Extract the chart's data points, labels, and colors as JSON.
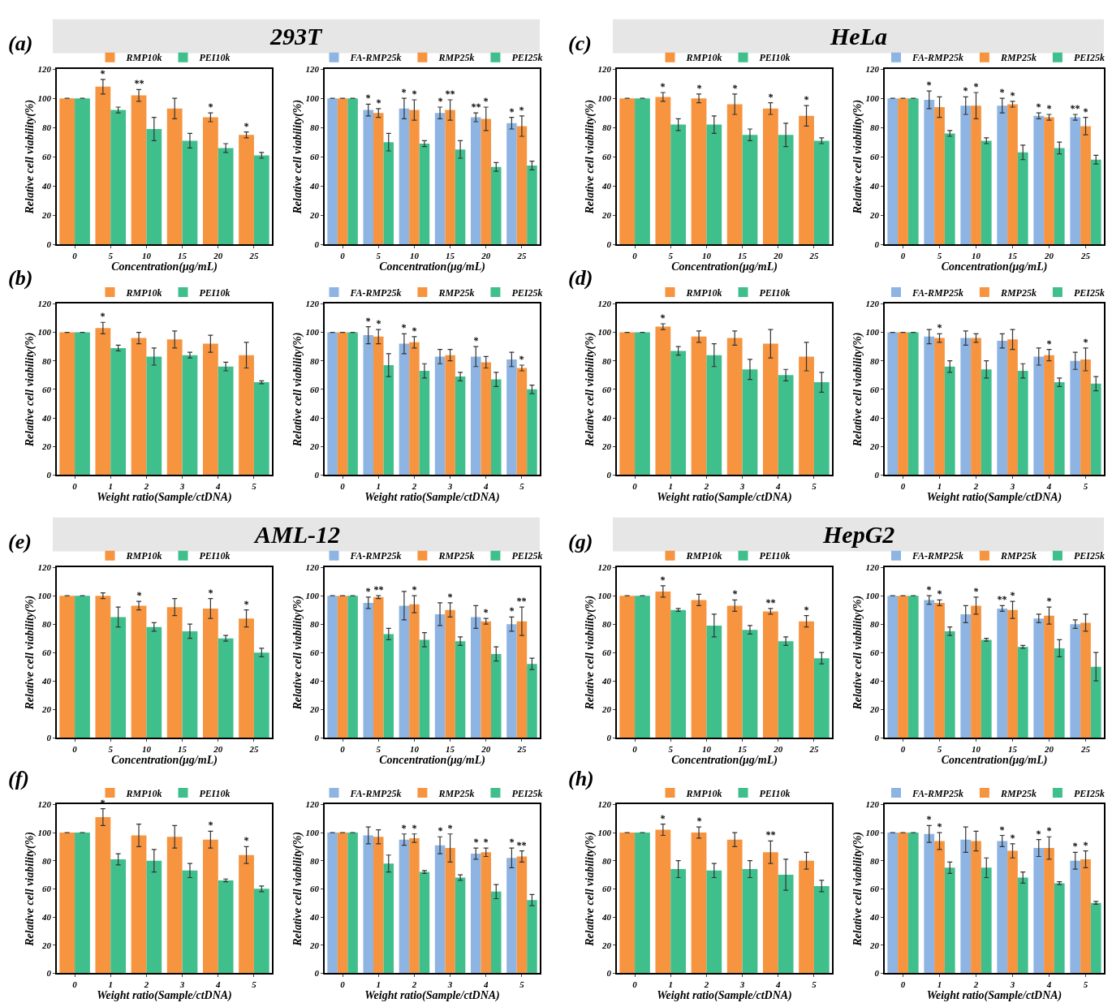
{
  "chart_data": [
    {
      "type": "bar",
      "annotations": [
        "(a)",
        "293T"
      ],
      "xlabel": "Concentration(μg/mL)",
      "ylabel": "Relative cell viability(%)",
      "categories": [
        "0",
        "5",
        "10",
        "15",
        "20",
        "25"
      ],
      "ylim": [
        0,
        120
      ],
      "yticks": [
        0,
        20,
        40,
        60,
        80,
        100,
        120
      ],
      "legend": "top",
      "series": [
        {
          "name": "RMP10k",
          "color": "#f7943f",
          "values": [
            100,
            108,
            102,
            93,
            87,
            75
          ],
          "errors": [
            null,
            5,
            4,
            7,
            3,
            2
          ],
          "value_labels": [
            null,
            "*",
            "**",
            null,
            "*",
            "*"
          ]
        },
        {
          "name": "PEI10k",
          "color": "#3fbf8c",
          "values": [
            100,
            92,
            79,
            71,
            66,
            61
          ],
          "errors": [
            null,
            2,
            8,
            5,
            3,
            2
          ]
        }
      ]
    },
    {
      "type": "bar",
      "xlabel": "Concentration(μg/mL)",
      "ylabel": "Relative cell viability(%)",
      "categories": [
        "0",
        "5",
        "10",
        "15",
        "20",
        "25"
      ],
      "ylim": [
        0,
        120
      ],
      "yticks": [
        0,
        20,
        40,
        60,
        80,
        100,
        120
      ],
      "legend": "top",
      "series": [
        {
          "name": "FA-RMP25k",
          "color": "#8db4e2",
          "values": [
            100,
            92,
            93,
            90,
            87,
            83
          ],
          "errors": [
            null,
            4,
            7,
            4,
            3,
            4
          ],
          "value_labels": [
            null,
            "*",
            "*",
            "*",
            "**",
            "*"
          ]
        },
        {
          "name": "RMP25k",
          "color": "#f7943f",
          "values": [
            100,
            90,
            92,
            92,
            86,
            81
          ],
          "errors": [
            null,
            3,
            7,
            7,
            8,
            7
          ],
          "value_labels": [
            null,
            "*",
            "*",
            "**",
            "*",
            "*"
          ]
        },
        {
          "name": "PEI25k",
          "color": "#3fbf8c",
          "values": [
            100,
            70,
            69,
            65,
            53,
            54
          ],
          "errors": [
            null,
            6,
            2,
            6,
            3,
            3
          ]
        }
      ]
    },
    {
      "type": "bar",
      "annotations": [
        "(c)",
        "HeLa"
      ],
      "xlabel": "Concentration(μg/mL)",
      "ylabel": "Relative cell viability(%)",
      "categories": [
        "0",
        "5",
        "10",
        "15",
        "20",
        "25"
      ],
      "ylim": [
        0,
        120
      ],
      "yticks": [
        0,
        20,
        40,
        60,
        80,
        100,
        120
      ],
      "legend": "top",
      "series": [
        {
          "name": "RMP10k",
          "color": "#f7943f",
          "values": [
            100,
            101,
            100,
            96,
            93,
            88
          ],
          "errors": [
            null,
            3,
            3,
            7,
            4,
            7
          ],
          "value_labels": [
            null,
            "*",
            "*",
            "*",
            "*",
            "*"
          ]
        },
        {
          "name": "PEI10k",
          "color": "#3fbf8c",
          "values": [
            100,
            82,
            82,
            75,
            75,
            71
          ],
          "errors": [
            null,
            4,
            6,
            4,
            8,
            2
          ]
        }
      ]
    },
    {
      "type": "bar",
      "xlabel": "Concentration(μg/mL)",
      "ylabel": "Relative cell viability(%)",
      "categories": [
        "0",
        "5",
        "10",
        "15",
        "20",
        "25"
      ],
      "ylim": [
        0,
        120
      ],
      "yticks": [
        0,
        20,
        40,
        60,
        80,
        100,
        120
      ],
      "legend": "top",
      "series": [
        {
          "name": "FA-RMP25k",
          "color": "#8db4e2",
          "values": [
            100,
            99,
            95,
            95,
            88,
            87
          ],
          "errors": [
            null,
            6,
            6,
            5,
            2,
            2
          ],
          "value_labels": [
            null,
            "*",
            "*",
            "*",
            "*",
            "**"
          ]
        },
        {
          "name": "RMP25k",
          "color": "#f7943f",
          "values": [
            100,
            94,
            95,
            96,
            87,
            81
          ],
          "errors": [
            null,
            7,
            9,
            2,
            2,
            6
          ],
          "value_labels": [
            null,
            null,
            "*",
            "*",
            "*",
            "*"
          ]
        },
        {
          "name": "PEI25k",
          "color": "#3fbf8c",
          "values": [
            100,
            76,
            71,
            63,
            66,
            58
          ],
          "errors": [
            null,
            2,
            2,
            5,
            4,
            3
          ]
        }
      ]
    },
    {
      "type": "bar",
      "annotations": [
        "(b)"
      ],
      "xlabel": "Weight ratio(Sample/ctDNA)",
      "ylabel": "Relative cell viability(%)",
      "categories": [
        "0",
        "1",
        "2",
        "3",
        "4",
        "5"
      ],
      "ylim": [
        0,
        120
      ],
      "yticks": [
        0,
        20,
        40,
        60,
        80,
        100,
        120
      ],
      "legend": "top",
      "series": [
        {
          "name": "RMP10k",
          "color": "#f7943f",
          "values": [
            100,
            103,
            96,
            95,
            92,
            84
          ],
          "errors": [
            null,
            4,
            4,
            6,
            6,
            9
          ],
          "value_labels": [
            null,
            "*",
            null,
            null,
            null,
            null
          ]
        },
        {
          "name": "PEI10k",
          "color": "#3fbf8c",
          "values": [
            100,
            89,
            83,
            84,
            76,
            65
          ],
          "errors": [
            null,
            2,
            6,
            2,
            3,
            1
          ]
        }
      ]
    },
    {
      "type": "bar",
      "xlabel": "Weight ratio(Sample/ctDNA)",
      "ylabel": "Relative cell viability(%)",
      "categories": [
        "0",
        "1",
        "2",
        "3",
        "4",
        "5"
      ],
      "ylim": [
        0,
        120
      ],
      "yticks": [
        0,
        20,
        40,
        60,
        80,
        100,
        120
      ],
      "legend": "top",
      "series": [
        {
          "name": "FA-RMP25k",
          "color": "#8db4e2",
          "values": [
            100,
            98,
            92,
            83,
            83,
            81
          ],
          "errors": [
            null,
            6,
            7,
            5,
            7,
            5
          ],
          "value_labels": [
            null,
            "*",
            "*",
            null,
            "*",
            null
          ]
        },
        {
          "name": "RMP25k",
          "color": "#f7943f",
          "values": [
            100,
            97,
            93,
            84,
            79,
            75
          ],
          "errors": [
            null,
            5,
            4,
            4,
            4,
            2
          ],
          "value_labels": [
            null,
            "*",
            "*",
            null,
            null,
            "*"
          ]
        },
        {
          "name": "PEI25k",
          "color": "#3fbf8c",
          "values": [
            100,
            77,
            73,
            69,
            67,
            60
          ],
          "errors": [
            null,
            8,
            5,
            3,
            5,
            3
          ]
        }
      ]
    },
    {
      "type": "bar",
      "annotations": [
        "(d)"
      ],
      "xlabel": "Weight ratio(Sample/ctDNA)",
      "ylabel": "Relative cell viability(%)",
      "categories": [
        "0",
        "1",
        "2",
        "3",
        "4",
        "5"
      ],
      "ylim": [
        0,
        120
      ],
      "yticks": [
        0,
        20,
        40,
        60,
        80,
        100,
        120
      ],
      "legend": "top",
      "series": [
        {
          "name": "RMP10k",
          "color": "#f7943f",
          "values": [
            100,
            104,
            97,
            96,
            92,
            83
          ],
          "errors": [
            null,
            2,
            4,
            5,
            10,
            10
          ],
          "value_labels": [
            null,
            "*",
            null,
            null,
            null,
            null
          ]
        },
        {
          "name": "PEI10k",
          "color": "#3fbf8c",
          "values": [
            100,
            87,
            84,
            74,
            70,
            65
          ],
          "errors": [
            null,
            3,
            8,
            7,
            4,
            7
          ]
        }
      ]
    },
    {
      "type": "bar",
      "xlabel": "Weight ratio(Sample/ctDNA)",
      "ylabel": "Relative cell viability(%)",
      "categories": [
        "0",
        "1",
        "2",
        "3",
        "4",
        "5"
      ],
      "ylim": [
        0,
        120
      ],
      "yticks": [
        0,
        20,
        40,
        60,
        80,
        100,
        120
      ],
      "legend": "top",
      "series": [
        {
          "name": "FA-RMP25k",
          "color": "#8db4e2",
          "values": [
            100,
            97,
            96,
            94,
            83,
            80
          ],
          "errors": [
            null,
            5,
            5,
            5,
            6,
            6
          ]
        },
        {
          "name": "RMP25k",
          "color": "#f7943f",
          "values": [
            100,
            96,
            96,
            95,
            84,
            81
          ],
          "errors": [
            null,
            3,
            3,
            7,
            4,
            8
          ],
          "value_labels": [
            null,
            "*",
            null,
            null,
            "*",
            "*"
          ]
        },
        {
          "name": "PEI25k",
          "color": "#3fbf8c",
          "values": [
            100,
            76,
            74,
            73,
            65,
            64
          ],
          "errors": [
            null,
            4,
            6,
            5,
            3,
            5
          ]
        }
      ]
    },
    {
      "type": "bar",
      "annotations": [
        "(e)",
        "AML-12"
      ],
      "xlabel": "Concentration(μg/mL)",
      "ylabel": "Relative cell viability(%)",
      "categories": [
        "0",
        "5",
        "10",
        "15",
        "20",
        "25"
      ],
      "ylim": [
        0,
        120
      ],
      "yticks": [
        0,
        20,
        40,
        60,
        80,
        100,
        120
      ],
      "legend": "top",
      "series": [
        {
          "name": "RMP10k",
          "color": "#f7943f",
          "values": [
            100,
            100,
            93,
            92,
            91,
            84
          ],
          "errors": [
            null,
            2,
            3,
            6,
            7,
            6
          ],
          "value_labels": [
            null,
            null,
            "*",
            null,
            "*",
            "*"
          ]
        },
        {
          "name": "PEI10k",
          "color": "#3fbf8c",
          "values": [
            100,
            85,
            78,
            75,
            70,
            60
          ],
          "errors": [
            null,
            7,
            3,
            5,
            2,
            3
          ]
        }
      ]
    },
    {
      "type": "bar",
      "xlabel": "Concentration(μg/mL)",
      "ylabel": "Relative cell viability(%)",
      "categories": [
        "0",
        "5",
        "10",
        "15",
        "20",
        "25"
      ],
      "ylim": [
        0,
        120
      ],
      "yticks": [
        0,
        20,
        40,
        60,
        80,
        100,
        120
      ],
      "legend": "top",
      "series": [
        {
          "name": "FA-RMP25k",
          "color": "#8db4e2",
          "values": [
            100,
            95,
            93,
            87,
            85,
            80
          ],
          "errors": [
            null,
            4,
            10,
            8,
            8,
            5
          ],
          "value_labels": [
            null,
            "*",
            null,
            null,
            null,
            "*"
          ]
        },
        {
          "name": "RMP25k",
          "color": "#f7943f",
          "values": [
            100,
            99,
            94,
            90,
            82,
            82
          ],
          "errors": [
            null,
            1,
            6,
            5,
            2,
            10
          ],
          "value_labels": [
            null,
            "**",
            "*",
            "*",
            "*",
            "**"
          ]
        },
        {
          "name": "PEI25k",
          "color": "#3fbf8c",
          "values": [
            100,
            73,
            69,
            68,
            59,
            52
          ],
          "errors": [
            null,
            4,
            5,
            3,
            5,
            4
          ]
        }
      ]
    },
    {
      "type": "bar",
      "annotations": [
        "(g)",
        "HepG2"
      ],
      "xlabel": "Concentration(μg/mL)",
      "ylabel": "Relative cell viability(%)",
      "categories": [
        "0",
        "5",
        "10",
        "15",
        "20",
        "25"
      ],
      "ylim": [
        0,
        120
      ],
      "yticks": [
        0,
        20,
        40,
        60,
        80,
        100,
        120
      ],
      "legend": "top",
      "series": [
        {
          "name": "RMP10k",
          "color": "#f7943f",
          "values": [
            100,
            103,
            97,
            93,
            89,
            82
          ],
          "errors": [
            null,
            4,
            4,
            4,
            2,
            4
          ],
          "value_labels": [
            null,
            "*",
            null,
            "*",
            "**",
            "*"
          ]
        },
        {
          "name": "PEI10k",
          "color": "#3fbf8c",
          "values": [
            100,
            90,
            79,
            76,
            68,
            56
          ],
          "errors": [
            null,
            1,
            8,
            3,
            3,
            4
          ]
        }
      ]
    },
    {
      "type": "bar",
      "xlabel": "Concentration(μg/mL)",
      "ylabel": "Relative cell viability(%)",
      "categories": [
        "0",
        "5",
        "10",
        "15",
        "20",
        "25"
      ],
      "ylim": [
        0,
        120
      ],
      "yticks": [
        0,
        20,
        40,
        60,
        80,
        100,
        120
      ],
      "legend": "top",
      "series": [
        {
          "name": "FA-RMP25k",
          "color": "#8db4e2",
          "values": [
            100,
            97,
            87,
            91,
            84,
            80
          ],
          "errors": [
            null,
            3,
            6,
            2,
            3,
            3
          ],
          "value_labels": [
            null,
            "*",
            null,
            "**",
            null,
            null
          ]
        },
        {
          "name": "RMP25k",
          "color": "#f7943f",
          "values": [
            100,
            95,
            93,
            90,
            86,
            81
          ],
          "errors": [
            null,
            2,
            6,
            6,
            6,
            6
          ],
          "value_labels": [
            null,
            "*",
            "*",
            "*",
            "*",
            null
          ]
        },
        {
          "name": "PEI25k",
          "color": "#3fbf8c",
          "values": [
            100,
            75,
            69,
            64,
            63,
            50
          ],
          "errors": [
            null,
            3,
            1,
            1,
            6,
            10
          ]
        }
      ]
    },
    {
      "type": "bar",
      "annotations": [
        "(f)"
      ],
      "xlabel": "Weight ratio(Sample/ctDNA)",
      "ylabel": "Relative cell viability(%)",
      "categories": [
        "0",
        "1",
        "2",
        "3",
        "4",
        "5"
      ],
      "ylim": [
        0,
        120
      ],
      "yticks": [
        0,
        20,
        40,
        60,
        80,
        100,
        120
      ],
      "legend": "top",
      "series": [
        {
          "name": "RMP10k",
          "color": "#f7943f",
          "values": [
            100,
            111,
            98,
            97,
            95,
            84
          ],
          "errors": [
            null,
            6,
            8,
            8,
            6,
            6
          ],
          "value_labels": [
            null,
            "*",
            null,
            null,
            "*",
            "*"
          ]
        },
        {
          "name": "PEI10k",
          "color": "#3fbf8c",
          "values": [
            100,
            81,
            80,
            73,
            66,
            60
          ],
          "errors": [
            null,
            4,
            8,
            5,
            1,
            2
          ]
        }
      ]
    },
    {
      "type": "bar",
      "xlabel": "Weight ratio(Sample/ctDNA)",
      "ylabel": "Relative cell viability(%)",
      "categories": [
        "0",
        "1",
        "2",
        "3",
        "4",
        "5"
      ],
      "ylim": [
        0,
        120
      ],
      "yticks": [
        0,
        20,
        40,
        60,
        80,
        100,
        120
      ],
      "legend": "top",
      "series": [
        {
          "name": "FA-RMP25k",
          "color": "#8db4e2",
          "values": [
            100,
            98,
            95,
            91,
            85,
            82
          ],
          "errors": [
            null,
            6,
            4,
            6,
            4,
            7
          ],
          "value_labels": [
            null,
            null,
            "*",
            "*",
            "*",
            "*"
          ]
        },
        {
          "name": "RMP25k",
          "color": "#f7943f",
          "values": [
            100,
            97,
            96,
            89,
            86,
            83
          ],
          "errors": [
            null,
            5,
            3,
            10,
            3,
            4
          ],
          "value_labels": [
            null,
            null,
            "*",
            "*",
            "*",
            "**"
          ]
        },
        {
          "name": "PEI25k",
          "color": "#3fbf8c",
          "values": [
            100,
            78,
            72,
            68,
            58,
            52
          ],
          "errors": [
            null,
            6,
            1,
            2,
            5,
            4
          ]
        }
      ]
    },
    {
      "type": "bar",
      "annotations": [
        "(h)"
      ],
      "xlabel": "Weight ratio(Sample/ctDNA)",
      "ylabel": "Relative cell viability(%)",
      "categories": [
        "0",
        "1",
        "2",
        "3",
        "4",
        "5"
      ],
      "ylim": [
        0,
        120
      ],
      "yticks": [
        0,
        20,
        40,
        60,
        80,
        100,
        120
      ],
      "legend": "top",
      "series": [
        {
          "name": "RMP10k",
          "color": "#f7943f",
          "values": [
            100,
            102,
            100,
            95,
            86,
            80
          ],
          "errors": [
            null,
            4,
            4,
            5,
            8,
            6
          ],
          "value_labels": [
            null,
            "*",
            "*",
            null,
            "**",
            null
          ]
        },
        {
          "name": "PEI10k",
          "color": "#3fbf8c",
          "values": [
            100,
            74,
            73,
            74,
            70,
            62
          ],
          "errors": [
            null,
            6,
            5,
            6,
            11,
            4
          ]
        }
      ]
    },
    {
      "type": "bar",
      "xlabel": "Weight ratio(Sample/ctDNA)",
      "ylabel": "Relative cell viability(%)",
      "categories": [
        "0",
        "1",
        "2",
        "3",
        "4",
        "5"
      ],
      "ylim": [
        0,
        120
      ],
      "yticks": [
        0,
        20,
        40,
        60,
        80,
        100,
        120
      ],
      "legend": "top",
      "series": [
        {
          "name": "FA-RMP25k",
          "color": "#8db4e2",
          "values": [
            100,
            99,
            95,
            94,
            89,
            80
          ],
          "errors": [
            null,
            6,
            9,
            4,
            6,
            6
          ],
          "value_labels": [
            null,
            "*",
            null,
            "*",
            "*",
            "*"
          ]
        },
        {
          "name": "RMP25k",
          "color": "#f7943f",
          "values": [
            100,
            94,
            94,
            87,
            89,
            81
          ],
          "errors": [
            null,
            6,
            7,
            5,
            8,
            6
          ],
          "value_labels": [
            null,
            "*",
            null,
            "*",
            "*",
            "*"
          ]
        },
        {
          "name": "PEI25k",
          "color": "#3fbf8c",
          "values": [
            100,
            75,
            75,
            68,
            64,
            50
          ],
          "errors": [
            null,
            4,
            7,
            4,
            1,
            1
          ]
        }
      ]
    }
  ]
}
